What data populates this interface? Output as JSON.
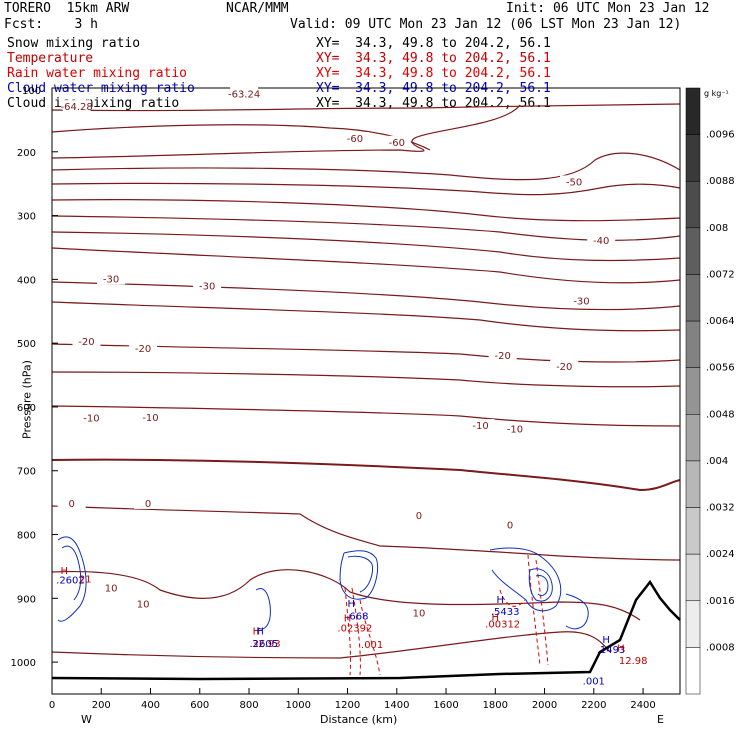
{
  "header": {
    "model": "TORERO  15km ARW",
    "center": "NCAR/MMM",
    "init": "Init: 06 UTC Mon 23 Jan 12",
    "fcst": "Fcst:    3 h",
    "valid": "Valid: 09 UTC Mon 23 Jan 12 (06 LST Mon 23 Jan 12)"
  },
  "fields": [
    {
      "name": "Snow mixing ratio",
      "xy": "XY=  34.3, 49.8 to 204.2, 56.1",
      "color": "#000000"
    },
    {
      "name": "Temperature",
      "xy": "XY=  34.3, 49.8 to 204.2, 56.1",
      "color": "#c00000"
    },
    {
      "name": "Rain water mixing ratio",
      "xy": "XY=  34.3, 49.8 to 204.2, 56.1",
      "color": "#e00000"
    },
    {
      "name": "Cloud water mixing ratio",
      "xy": "XY=  34.3, 49.8 to 204.2, 56.1",
      "color": "#0000c0"
    },
    {
      "name": "Cloud ice mixing ratio",
      "xy": "XY=  34.3, 49.8 to 204.2, 56.1",
      "color": "#000000"
    }
  ],
  "chart_data": {
    "type": "contour cross-section",
    "xlabel": "Distance (km)",
    "ylabel": "Pressure (hPa)",
    "x_ticks": [
      0,
      200,
      400,
      600,
      800,
      1000,
      1200,
      1400,
      1600,
      1800,
      2000,
      2200,
      2400
    ],
    "y_ticks": [
      200,
      300,
      400,
      500,
      600,
      700,
      800,
      900,
      1000
    ],
    "y_top_label": "100",
    "xlim": [
      0,
      2550
    ],
    "ylim": [
      1050,
      100
    ],
    "x_ends": {
      "left": "W",
      "right": "E"
    },
    "colorbar": {
      "unit": "g kg⁻¹",
      "ticks": [
        ".0096",
        ".0088",
        ".008",
        ".0072",
        ".0064",
        ".0056",
        ".0048",
        ".004",
        ".0032",
        ".0024",
        ".0016",
        ".0008"
      ]
    },
    "temperature_contour_labels": [
      {
        "text": "-63.24",
        "x": 780,
        "p": 110
      },
      {
        "text": "-64.28",
        "x": 100,
        "p": 130
      },
      {
        "text": "-60",
        "x": 1230,
        "p": 180
      },
      {
        "text": "-60",
        "x": 1400,
        "p": 186
      },
      {
        "text": "-50",
        "x": 2120,
        "p": 248
      },
      {
        "text": "-40",
        "x": 2230,
        "p": 340
      },
      {
        "text": "-30",
        "x": 240,
        "p": 400
      },
      {
        "text": "-30",
        "x": 630,
        "p": 411
      },
      {
        "text": "-30",
        "x": 2150,
        "p": 435
      },
      {
        "text": "-20",
        "x": 140,
        "p": 498
      },
      {
        "text": "-20",
        "x": 370,
        "p": 509
      },
      {
        "text": "-20",
        "x": 1830,
        "p": 520
      },
      {
        "text": "-20",
        "x": 2080,
        "p": 537
      },
      {
        "text": "-10",
        "x": 160,
        "p": 618
      },
      {
        "text": "-10",
        "x": 400,
        "p": 617
      },
      {
        "text": "-10",
        "x": 1740,
        "p": 630
      },
      {
        "text": "-10",
        "x": 1880,
        "p": 635
      },
      {
        "text": "0",
        "x": 80,
        "p": 752
      },
      {
        "text": "0",
        "x": 390,
        "p": 752
      },
      {
        "text": "0",
        "x": 1490,
        "p": 771
      },
      {
        "text": "0",
        "x": 1860,
        "p": 786
      },
      {
        "text": "10",
        "x": 240,
        "p": 885
      },
      {
        "text": "10",
        "x": 370,
        "p": 910
      },
      {
        "text": "10",
        "x": 1490,
        "p": 924
      }
    ],
    "extrema_labels": [
      {
        "text": "H",
        "x": 50,
        "p": 862,
        "color": "#c00000"
      },
      {
        "text": ".2602",
        "x": 75,
        "p": 877,
        "color": "#0000c0"
      },
      {
        "text": "21",
        "x": 135,
        "p": 875,
        "color": "#c00000"
      },
      {
        "text": "H",
        "x": 830,
        "p": 957,
        "color": "#c00000"
      },
      {
        "text": "H",
        "x": 845,
        "p": 957,
        "color": "#0000c0"
      },
      {
        "text": "32.93",
        "x": 870,
        "p": 976,
        "color": "#c00000"
      },
      {
        "text": ".2605",
        "x": 860,
        "p": 976,
        "color": "#0000c0"
      },
      {
        "text": "H",
        "x": 1215,
        "p": 914,
        "color": "#0000c0"
      },
      {
        "text": ".668",
        "x": 1240,
        "p": 933,
        "color": "#0000c0"
      },
      {
        "text": "H",
        "x": 1200,
        "p": 936,
        "color": "#c00000"
      },
      {
        "text": ".02392",
        "x": 1230,
        "p": 952,
        "color": "#c00000"
      },
      {
        "text": ".001",
        "x": 1300,
        "p": 978,
        "color": "#c00000"
      },
      {
        "text": "H",
        "x": 1820,
        "p": 907,
        "color": "#0000c0"
      },
      {
        "text": ".5433",
        "x": 1840,
        "p": 926,
        "color": "#0000c0"
      },
      {
        "text": "H",
        "x": 1800,
        "p": 935,
        "color": "#c00000"
      },
      {
        "text": ".00312",
        "x": 1830,
        "p": 946,
        "color": "#c00000"
      },
      {
        "text": "H",
        "x": 2250,
        "p": 970,
        "color": "#0000c0"
      },
      {
        "text": ".1493",
        "x": 2270,
        "p": 986,
        "color": "#0000c0"
      },
      {
        "text": "H",
        "x": 2310,
        "p": 983,
        "color": "#c00000"
      },
      {
        "text": "12.98",
        "x": 2360,
        "p": 1003,
        "color": "#c00000"
      },
      {
        "text": ".001",
        "x": 2200,
        "p": 1035,
        "color": "#0000c0"
      }
    ]
  }
}
